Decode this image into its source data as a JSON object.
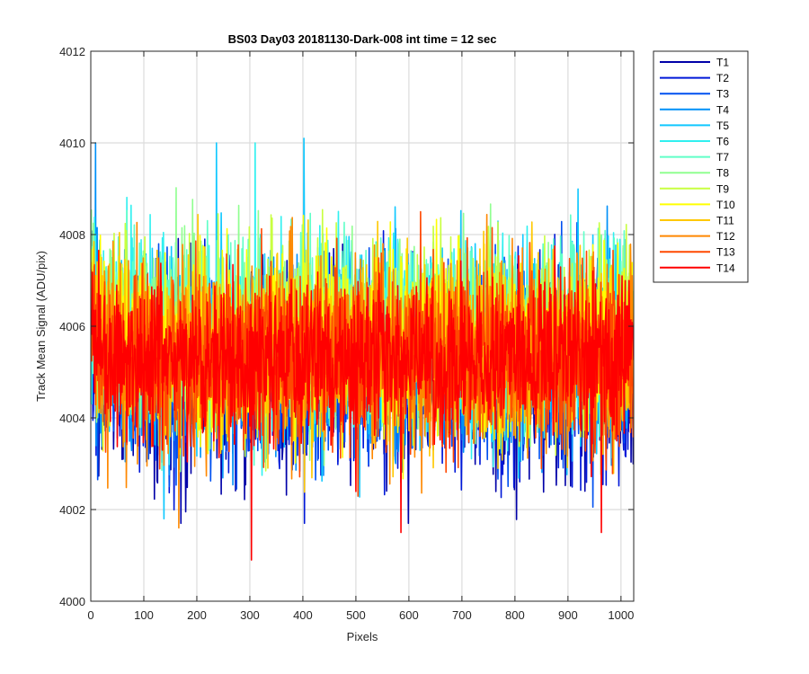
{
  "chart_data": {
    "type": "line",
    "title": "BS03 Day03 20181130-Dark-008 int time = 12 sec",
    "xlabel": "Pixels",
    "ylabel": "Track Mean Signal (ADU/pix)",
    "xlim": [
      0,
      1024
    ],
    "ylim": [
      4000,
      4012
    ],
    "xticks": [
      0,
      100,
      200,
      300,
      400,
      500,
      600,
      700,
      800,
      900,
      1000
    ],
    "yticks": [
      4000,
      4002,
      4004,
      4006,
      4008,
      4010,
      4012
    ],
    "grid": true,
    "legend_position": "outside-top-right",
    "x_points": 1024,
    "series": [
      {
        "name": "T1",
        "color": "#0000a8",
        "mean": 4005.0,
        "noise_sd": 1.05
      },
      {
        "name": "T2",
        "color": "#0018d8",
        "mean": 4005.1,
        "noise_sd": 1.05
      },
      {
        "name": "T3",
        "color": "#0050f0",
        "mean": 4005.2,
        "noise_sd": 1.0
      },
      {
        "name": "T4",
        "color": "#0090f8",
        "mean": 4005.4,
        "noise_sd": 1.0
      },
      {
        "name": "T5",
        "color": "#10c8ff",
        "mean": 4005.6,
        "noise_sd": 1.0
      },
      {
        "name": "T6",
        "color": "#30f0f0",
        "mean": 4005.8,
        "noise_sd": 1.0
      },
      {
        "name": "T7",
        "color": "#60ffc8",
        "mean": 4005.9,
        "noise_sd": 0.95
      },
      {
        "name": "T8",
        "color": "#90ff90",
        "mean": 4005.8,
        "noise_sd": 0.95
      },
      {
        "name": "T9",
        "color": "#c8ff40",
        "mean": 4005.7,
        "noise_sd": 0.95
      },
      {
        "name": "T10",
        "color": "#ffff00",
        "mean": 4005.6,
        "noise_sd": 0.95
      },
      {
        "name": "T11",
        "color": "#ffc800",
        "mean": 4005.4,
        "noise_sd": 0.95
      },
      {
        "name": "T12",
        "color": "#ff8800",
        "mean": 4005.4,
        "noise_sd": 1.0
      },
      {
        "name": "T13",
        "color": "#ff4800",
        "mean": 4005.3,
        "noise_sd": 0.95
      },
      {
        "name": "T14",
        "color": "#ff0000",
        "mean": 4005.3,
        "noise_sd": 0.85
      }
    ],
    "notable_extremes": [
      {
        "series": "T14",
        "x": 302,
        "y": 4000.9
      },
      {
        "series": "T14",
        "x": 584,
        "y": 4001.5
      },
      {
        "series": "T12",
        "x": 165,
        "y": 4001.6
      },
      {
        "series": "T5",
        "x": 137,
        "y": 4001.8
      },
      {
        "series": "T14",
        "x": 962,
        "y": 4001.5
      },
      {
        "series": "T5",
        "x": 401,
        "y": 4010.1
      },
      {
        "series": "T4",
        "x": 8,
        "y": 4010.0
      },
      {
        "series": "T5",
        "x": 236,
        "y": 4010.0
      },
      {
        "series": "T6",
        "x": 309,
        "y": 4010.0
      }
    ]
  }
}
